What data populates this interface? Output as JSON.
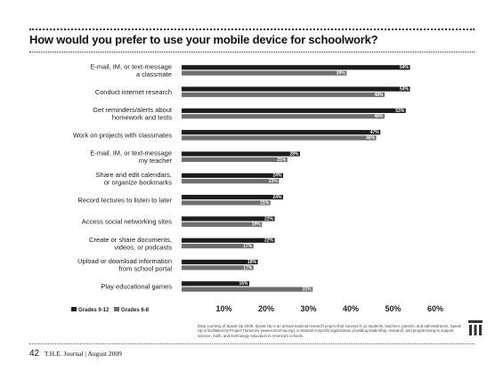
{
  "chart_data": {
    "type": "bar",
    "orientation": "horizontal",
    "title": "How would you prefer to use your mobile device for schoolwork?",
    "categories": [
      "E-mail, IM, or text-message\na classmate",
      "Conduct internet research",
      "Get reminders/alerts about\nhomework and tests",
      "Work on projects with classmates",
      "E-mail, IM, or text-message\nmy teacher",
      "Share and edit calendars,\nor organize bookmarks",
      "Record lectures to listen to later",
      "Access social networking sites",
      "Create or share documents,\nvideos, or podcasts",
      "Upload or download information\nfrom school portal",
      "Play educational games"
    ],
    "series": [
      {
        "name": "Grades 9-12",
        "color": "#1c1c1c",
        "values": [
          54,
          54,
          53,
          47,
          28,
          24,
          24,
          22,
          22,
          18,
          16
        ]
      },
      {
        "name": "Grades 6-8",
        "color": "#6e6e6e",
        "values": [
          39,
          48,
          48,
          46,
          25,
          23,
          21,
          19,
          17,
          17,
          31
        ]
      }
    ],
    "value_labels": [
      [
        "54%",
        "39%"
      ],
      [
        "54%",
        "48%"
      ],
      [
        "53%",
        "48%"
      ],
      [
        "47%",
        "46%"
      ],
      [
        "28%",
        "25%"
      ],
      [
        "24%",
        "23%"
      ],
      [
        "24%",
        "21%"
      ],
      [
        "22%",
        "19%"
      ],
      [
        "22%",
        "17%"
      ],
      [
        "18%",
        "17%"
      ],
      [
        "16%",
        "31%"
      ]
    ],
    "xlim": [
      0,
      60
    ],
    "xticks": [
      10,
      20,
      30,
      40,
      50,
      60
    ],
    "xtick_labels": [
      "10%",
      "20%",
      "30%",
      "40%",
      "50%",
      "60%"
    ],
    "grid": false,
    "legend_position": "bottom-left",
    "legend_labels": [
      "Grades 9-12",
      "Grades 6-8"
    ]
  },
  "source_note": "Data courtesy of Speak Up 2008. Speak Up is an annual national research project that surveys K-12 students, teachers, parents, and administrators. Speak Up is facilitated by Project Tomorrow (www.tomorrow.org), a national nonprofit organization providing leadership, research, and programming to support science, math, and technology education in America's schools.",
  "footer": {
    "page_number": "42",
    "publication": "T.H.E. Journal | August 2009"
  },
  "colors": {
    "bar_dark": "#1c1c1c",
    "bar_light": "#6e6e6e",
    "background": "#ffffff"
  }
}
